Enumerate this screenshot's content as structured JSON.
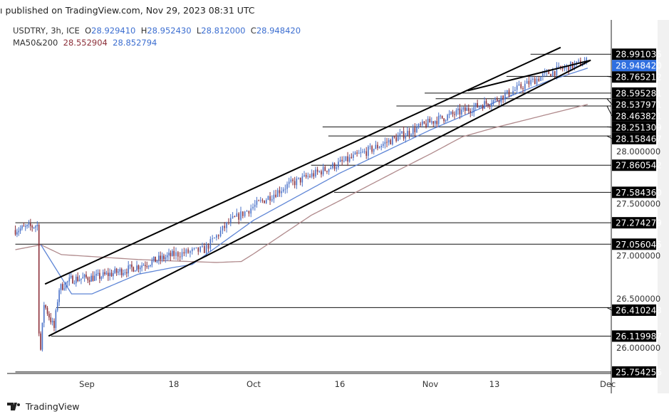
{
  "header": {
    "published": "ı published on TradingView.com, Nov 29, 2023 08:31 UTC"
  },
  "legend": {
    "symbol": "USDTRY, 3h, ICE",
    "o_label": "O",
    "o": "28.929410",
    "h_label": "H",
    "h": "28.952430",
    "l_label": "L",
    "l": "28.812000",
    "c_label": "C",
    "c": "28.948420",
    "ma_label": "MA50&200",
    "ma200": "28.552904",
    "ma50": "28.852794"
  },
  "footer": {
    "brand": "TradingView"
  },
  "chart_data": {
    "type": "candlestick",
    "symbol": "USDTRY",
    "interval": "3h",
    "ylim": [
      25.72,
      29.12
    ],
    "y_ticks": [
      "26.000000",
      "26.500000",
      "27.000000",
      "27.500000",
      "28.000000"
    ],
    "x_ticks": [
      {
        "label": "Sep",
        "day": 0
      },
      {
        "label": "18",
        "day": 17
      },
      {
        "label": "Oct",
        "day": 30
      },
      {
        "label": "16",
        "day": 45
      },
      {
        "label": "Nov",
        "day": 61
      },
      {
        "label": "13",
        "day": 73
      },
      {
        "label": "Dec",
        "day": 91
      }
    ],
    "price_path": [
      [
        -14,
        27.2
      ],
      [
        -9.6,
        27.25
      ],
      [
        -9.3,
        25.8
      ],
      [
        -8.4,
        26.45
      ],
      [
        -6.4,
        26.2
      ],
      [
        -5.5,
        26.6
      ],
      [
        -3,
        26.7
      ],
      [
        2,
        26.72
      ],
      [
        8,
        26.8
      ],
      [
        17,
        26.95
      ],
      [
        22,
        27.0
      ],
      [
        26,
        27.28
      ],
      [
        30,
        27.44
      ],
      [
        36,
        27.66
      ],
      [
        45,
        27.88
      ],
      [
        50.5,
        28.02
      ],
      [
        61,
        28.3
      ],
      [
        73,
        28.52
      ],
      [
        82,
        28.8
      ],
      [
        88.5,
        28.92
      ]
    ],
    "ma200_path": [
      [
        -14,
        27.0
      ],
      [
        -9,
        27.05
      ],
      [
        -5,
        26.95
      ],
      [
        10,
        26.9
      ],
      [
        24,
        26.87
      ],
      [
        28,
        26.88
      ],
      [
        40,
        27.35
      ],
      [
        55,
        27.8
      ],
      [
        67,
        28.15
      ],
      [
        80,
        28.35
      ],
      [
        88.5,
        28.48
      ]
    ],
    "ma50_path": [
      [
        -9,
        27.05
      ],
      [
        -3,
        26.55
      ],
      [
        1,
        26.55
      ],
      [
        10,
        26.75
      ],
      [
        20,
        26.85
      ],
      [
        30,
        27.3
      ],
      [
        45,
        27.78
      ],
      [
        61,
        28.22
      ],
      [
        73,
        28.5
      ],
      [
        82,
        28.72
      ],
      [
        88.5,
        28.85
      ]
    ],
    "trendlines": [
      [
        [
          -8.2,
          26.65
        ],
        [
          84,
          29.06
        ]
      ],
      [
        [
          -7.5,
          26.12
        ],
        [
          89,
          28.93
        ]
      ],
      [
        [
          68,
          28.62
        ],
        [
          89,
          28.93
        ]
      ]
    ],
    "levels": [
      {
        "value": 28.991035,
        "label": "28.991035",
        "from_day": 79
      },
      {
        "value": 28.94842,
        "label": "28.948420",
        "current": true,
        "from_day": 84
      },
      {
        "value": 28.765212,
        "label": "28.765212",
        "from_day": 75
      },
      {
        "value": 28.595281,
        "label": "28.595281",
        "from_day": 60
      },
      {
        "value": 28.537971,
        "label": "28.537971",
        "from_day": 62
      },
      {
        "value": 28.463821,
        "label": "28.463821",
        "from_day": 55
      },
      {
        "value": 28.251309,
        "label": "28.251309",
        "from_day": 42
      },
      {
        "value": 28.158467,
        "label": "28.158467",
        "from_day": 43
      },
      {
        "value": 27.860542,
        "label": "27.860542",
        "from_day": 40
      },
      {
        "value": 27.58436,
        "label": "27.584360",
        "from_day": 44
      },
      {
        "value": 27.274279,
        "label": "27.274279",
        "from_day": -14
      },
      {
        "value": 27.056045,
        "label": "27.056045",
        "from_day": -14
      },
      {
        "value": 26.410243,
        "label": "26.410243",
        "from_day": -6
      },
      {
        "value": 26.119987,
        "label": "26.119987",
        "from_day": -7
      },
      {
        "value": 25.754256,
        "label": "25.754256",
        "from_day": -14
      }
    ],
    "colors": {
      "up": "#4a72c9",
      "down": "#8c2f39",
      "ma200": "#b08a8c",
      "ma50": "#5f86d6",
      "current": "#2f6fe0"
    }
  }
}
